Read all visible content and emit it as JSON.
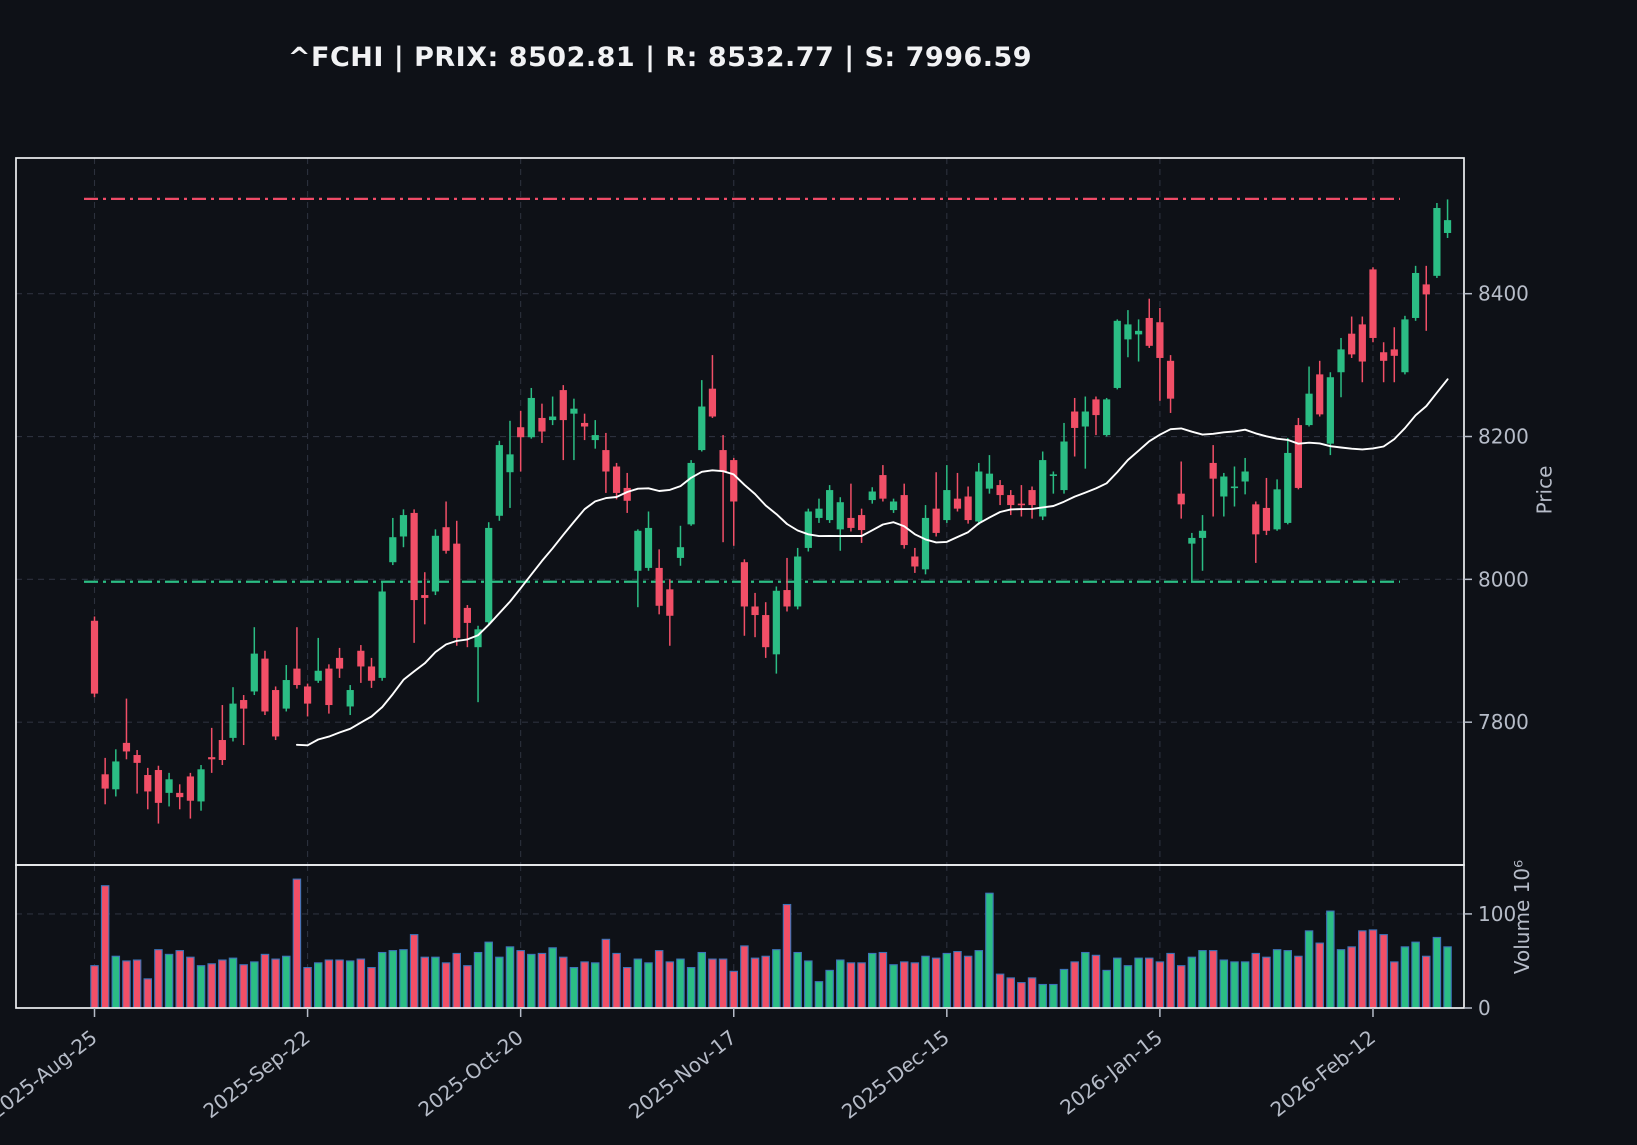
{
  "title": {
    "text": "^FCHI | PRIX: 8502.81 | R: 8532.77 | S: 7996.59"
  },
  "levels": {
    "prix": 8502.81,
    "resistance": 8532.77,
    "support": 7996.59
  },
  "price_axis": {
    "label": "Price",
    "ticks": [
      8400,
      8200,
      8000,
      7800
    ],
    "ylim": [
      7600,
      8590
    ]
  },
  "volume_axis": {
    "label": "Volume 10⁶",
    "ticks": [
      100,
      0
    ],
    "ylim": [
      0,
      152
    ]
  },
  "x_axis": {
    "tick_indices": [
      0,
      20,
      40,
      60,
      80,
      100,
      120
    ],
    "tick_labels": [
      "2025-Aug-25",
      "2025-Sep-22",
      "2025-Oct-20",
      "2025-Nov-17",
      "2025-Dec-15",
      "2026-Jan-15",
      "2026-Feb-12"
    ],
    "rotation_deg": -38
  },
  "colors": {
    "background": "#0e1117",
    "up": "#2bbd84",
    "down": "#f14f67",
    "volume_edge": "#3d74b8",
    "ma_line": "#ffffff",
    "resistance": "#ef4b67",
    "support": "#2bbd84",
    "grid": "#2c313d",
    "spine": "#eef0f2",
    "tick_text": "#b6bcc8",
    "title_text": "#f1f2f4"
  },
  "chart_data": {
    "type": "candlestick",
    "symbol": "^FCHI",
    "ma_period": 20,
    "legend_position": "none",
    "grid": true,
    "columns": [
      "open",
      "high",
      "low",
      "close",
      "volume_millions"
    ],
    "candles": [
      [
        7942,
        7948,
        7835,
        7840,
        45
      ],
      [
        7727,
        7750,
        7685,
        7707,
        130
      ],
      [
        7706,
        7762,
        7696,
        7745,
        55
      ],
      [
        7771,
        7833,
        7748,
        7759,
        50
      ],
      [
        7754,
        7761,
        7700,
        7743,
        51
      ],
      [
        7726,
        7736,
        7678,
        7703,
        31
      ],
      [
        7733,
        7739,
        7658,
        7687,
        62
      ],
      [
        7701,
        7729,
        7682,
        7720,
        57
      ],
      [
        7701,
        7713,
        7678,
        7695,
        61
      ],
      [
        7724,
        7729,
        7665,
        7690,
        54
      ],
      [
        7689,
        7740,
        7676,
        7734,
        45
      ],
      [
        7751,
        7792,
        7729,
        7748,
        47
      ],
      [
        7775,
        7824,
        7740,
        7747,
        51
      ],
      [
        7778,
        7849,
        7773,
        7826,
        53
      ],
      [
        7831,
        7838,
        7768,
        7819,
        46
      ],
      [
        7843,
        7933,
        7838,
        7896,
        49
      ],
      [
        7889,
        7900,
        7810,
        7815,
        57
      ],
      [
        7845,
        7850,
        7775,
        7780,
        52
      ],
      [
        7819,
        7880,
        7815,
        7859,
        55
      ],
      [
        7875,
        7933,
        7847,
        7852,
        137
      ],
      [
        7850,
        7854,
        7808,
        7826,
        43
      ],
      [
        7858,
        7918,
        7855,
        7872,
        48
      ],
      [
        7875,
        7881,
        7812,
        7824,
        51
      ],
      [
        7890,
        7904,
        7862,
        7875,
        51
      ],
      [
        7822,
        7852,
        7810,
        7845,
        50
      ],
      [
        7900,
        7908,
        7855,
        7878,
        52
      ],
      [
        7878,
        7890,
        7848,
        7858,
        43
      ],
      [
        7862,
        7996,
        7858,
        7983,
        59
      ],
      [
        8024,
        8086,
        8020,
        8059,
        61
      ],
      [
        8060,
        8098,
        8045,
        8090,
        62
      ],
      [
        8093,
        8098,
        7911,
        7971,
        78
      ],
      [
        7978,
        8010,
        7937,
        7974,
        54
      ],
      [
        7983,
        8070,
        7978,
        8061,
        54
      ],
      [
        8073,
        8109,
        8036,
        8040,
        48
      ],
      [
        8050,
        8082,
        7907,
        7918,
        58
      ],
      [
        7960,
        7964,
        7905,
        7939,
        45
      ],
      [
        7905,
        7935,
        7828,
        7930,
        59
      ],
      [
        7940,
        8080,
        7936,
        8072,
        70
      ],
      [
        8089,
        8194,
        8082,
        8188,
        54
      ],
      [
        8150,
        8222,
        8100,
        8175,
        65
      ],
      [
        8213,
        8236,
        8151,
        8199,
        61
      ],
      [
        8199,
        8268,
        8197,
        8254,
        57
      ],
      [
        8226,
        8246,
        8191,
        8207,
        58
      ],
      [
        8223,
        8256,
        8216,
        8228,
        64
      ],
      [
        8265,
        8272,
        8167,
        8223,
        54
      ],
      [
        8232,
        8253,
        8167,
        8239,
        43
      ],
      [
        8219,
        8232,
        8195,
        8214,
        49
      ],
      [
        8195,
        8223,
        8183,
        8202,
        48
      ],
      [
        8181,
        8205,
        8121,
        8151,
        73
      ],
      [
        8158,
        8163,
        8112,
        8121,
        58
      ],
      [
        8128,
        8149,
        8093,
        8110,
        43
      ],
      [
        8012,
        8070,
        7961,
        8068,
        52
      ],
      [
        8016,
        8095,
        8012,
        8072,
        48
      ],
      [
        8016,
        8042,
        7951,
        7963,
        61
      ],
      [
        7986,
        8000,
        7907,
        7949,
        49
      ],
      [
        8030,
        8075,
        8019,
        8045,
        52
      ],
      [
        8077,
        8167,
        8075,
        8163,
        43
      ],
      [
        8181,
        8279,
        8179,
        8242,
        59
      ],
      [
        8267,
        8314,
        8226,
        8228,
        52
      ],
      [
        8181,
        8202,
        8052,
        8151,
        52
      ],
      [
        8167,
        8170,
        8047,
        8109,
        39
      ],
      [
        8024,
        8028,
        7921,
        7962,
        66
      ],
      [
        7962,
        7981,
        7919,
        7950,
        53
      ],
      [
        7950,
        7968,
        7890,
        7905,
        55
      ],
      [
        7895,
        7990,
        7868,
        7984,
        62
      ],
      [
        7985,
        8030,
        7955,
        7962,
        110
      ],
      [
        7962,
        8044,
        7958,
        8032,
        59
      ],
      [
        8044,
        8099,
        8039,
        8095,
        50
      ],
      [
        8086,
        8113,
        8079,
        8099,
        28
      ],
      [
        8083,
        8132,
        8079,
        8125,
        40
      ],
      [
        8070,
        8115,
        8040,
        8108,
        51
      ],
      [
        8086,
        8134,
        8067,
        8072,
        48
      ],
      [
        8090,
        8099,
        8051,
        8069,
        48
      ],
      [
        8111,
        8129,
        8106,
        8123,
        58
      ],
      [
        8146,
        8160,
        8109,
        8113,
        59
      ],
      [
        8097,
        8113,
        8093,
        8109,
        46
      ],
      [
        8118,
        8134,
        8043,
        8048,
        49
      ],
      [
        8032,
        8044,
        8009,
        8018,
        48
      ],
      [
        8014,
        8104,
        8007,
        8086,
        55
      ],
      [
        8099,
        8150,
        8060,
        8065,
        53
      ],
      [
        8083,
        8160,
        8079,
        8125,
        58
      ],
      [
        8113,
        8149,
        8095,
        8099,
        60
      ],
      [
        8116,
        8130,
        8078,
        8083,
        55
      ],
      [
        8081,
        8163,
        8076,
        8151,
        61
      ],
      [
        8127,
        8174,
        8120,
        8148,
        122
      ],
      [
        8132,
        8139,
        8104,
        8118,
        36
      ],
      [
        8118,
        8125,
        8090,
        8104,
        32
      ],
      [
        8106,
        8132,
        8088,
        8104,
        27
      ],
      [
        8125,
        8130,
        8085,
        8104,
        32
      ],
      [
        8088,
        8179,
        8083,
        8167,
        25
      ],
      [
        8145,
        8151,
        8120,
        8147,
        25
      ],
      [
        8125,
        8219,
        8120,
        8193,
        41
      ],
      [
        8235,
        8254,
        8172,
        8212,
        49
      ],
      [
        8214,
        8256,
        8155,
        8235,
        59
      ],
      [
        8252,
        8256,
        8202,
        8230,
        56
      ],
      [
        8202,
        8254,
        8200,
        8252,
        40
      ],
      [
        8268,
        8364,
        8266,
        8362,
        53
      ],
      [
        8336,
        8377,
        8311,
        8357,
        45
      ],
      [
        8343,
        8364,
        8305,
        8348,
        53
      ],
      [
        8366,
        8393,
        8324,
        8327,
        53
      ],
      [
        8360,
        8380,
        8250,
        8310,
        49
      ],
      [
        8306,
        8314,
        8233,
        8253,
        58
      ],
      [
        8120,
        8165,
        8085,
        8105,
        45
      ],
      [
        8050,
        8065,
        7996,
        8058,
        54
      ],
      [
        8058,
        8090,
        8012,
        8068,
        61
      ],
      [
        8163,
        8188,
        8088,
        8141,
        61
      ],
      [
        8116,
        8149,
        8088,
        8144,
        51
      ],
      [
        8128,
        8158,
        8102,
        8130,
        49
      ],
      [
        8137,
        8170,
        8119,
        8151,
        49
      ],
      [
        8105,
        8109,
        8023,
        8063,
        58
      ],
      [
        8100,
        8142,
        8062,
        8068,
        54
      ],
      [
        8070,
        8140,
        8068,
        8126,
        62
      ],
      [
        8079,
        8198,
        8077,
        8177,
        61
      ],
      [
        8216,
        8226,
        8126,
        8128,
        55
      ],
      [
        8216,
        8298,
        8214,
        8260,
        82
      ],
      [
        8287,
        8306,
        8228,
        8231,
        69
      ],
      [
        8190,
        8290,
        8174,
        8283,
        103
      ],
      [
        8290,
        8338,
        8255,
        8322,
        62
      ],
      [
        8344,
        8368,
        8310,
        8315,
        65
      ],
      [
        8357,
        8368,
        8276,
        8305,
        82
      ],
      [
        8434,
        8437,
        8332,
        8338,
        83
      ],
      [
        8318,
        8332,
        8276,
        8306,
        78
      ],
      [
        8322,
        8353,
        8276,
        8313,
        49
      ],
      [
        8290,
        8369,
        8287,
        8364,
        65
      ],
      [
        8366,
        8439,
        8362,
        8429,
        70
      ],
      [
        8413,
        8439,
        8348,
        8399,
        55
      ],
      [
        8425,
        8527,
        8422,
        8520,
        75
      ],
      [
        8485,
        8532,
        8478,
        8503,
        65
      ]
    ]
  }
}
